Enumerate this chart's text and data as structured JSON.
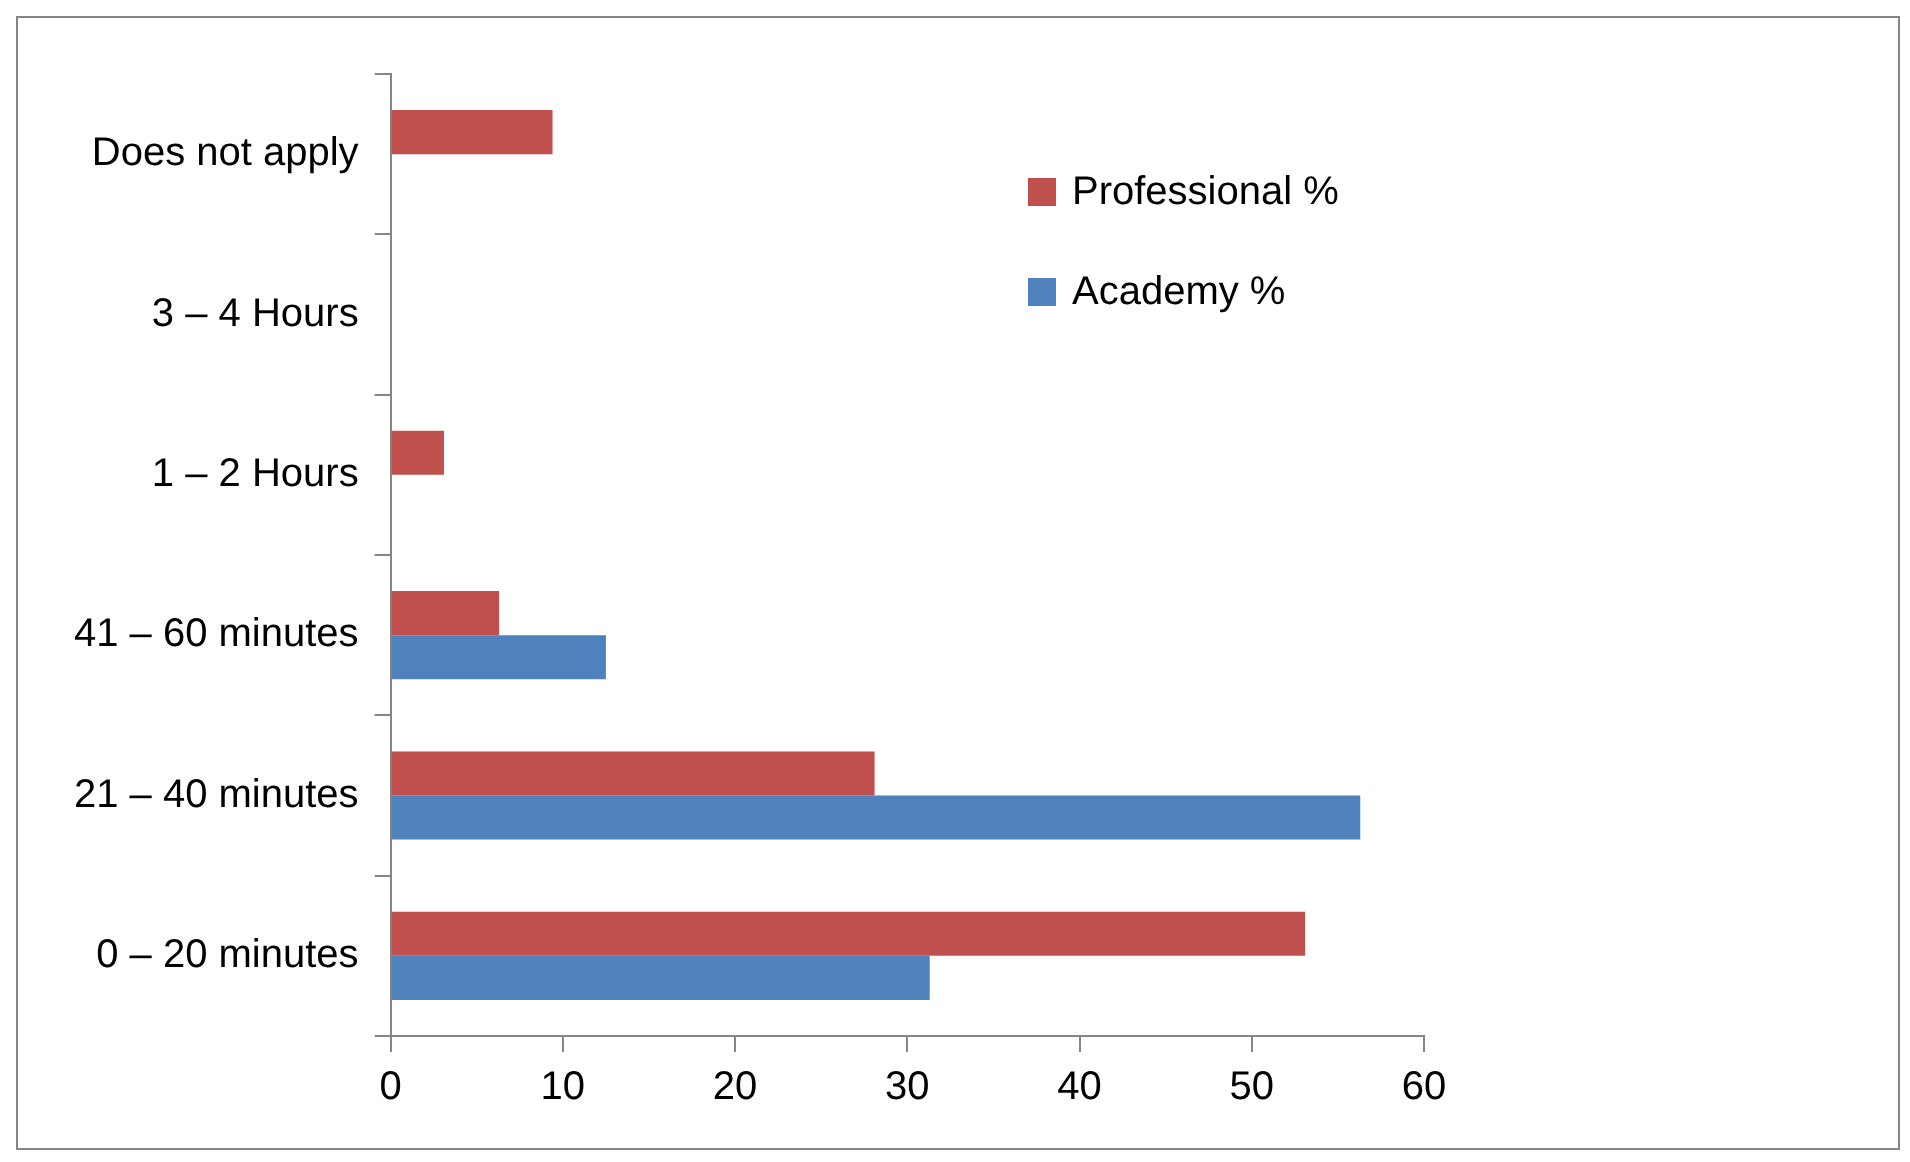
{
  "chart_data": {
    "type": "bar",
    "orientation": "horizontal",
    "categories": [
      "Does not apply",
      "3 – 4 Hours",
      "1 – 2 Hours",
      "41 – 60 minutes",
      "21 – 40 minutes",
      "0 – 20 minutes"
    ],
    "series": [
      {
        "name": "Professional %",
        "color": "#c0504d",
        "values": [
          9.4,
          0,
          3.1,
          6.3,
          28.1,
          53.1
        ]
      },
      {
        "name": "Academy %",
        "color": "#4f81bd",
        "values": [
          0,
          0,
          0,
          12.5,
          56.3,
          31.3
        ]
      }
    ],
    "xlim": [
      0,
      60
    ],
    "xticks": [
      0,
      10,
      20,
      30,
      40,
      50,
      60
    ],
    "grid": false,
    "legend": "top right"
  }
}
